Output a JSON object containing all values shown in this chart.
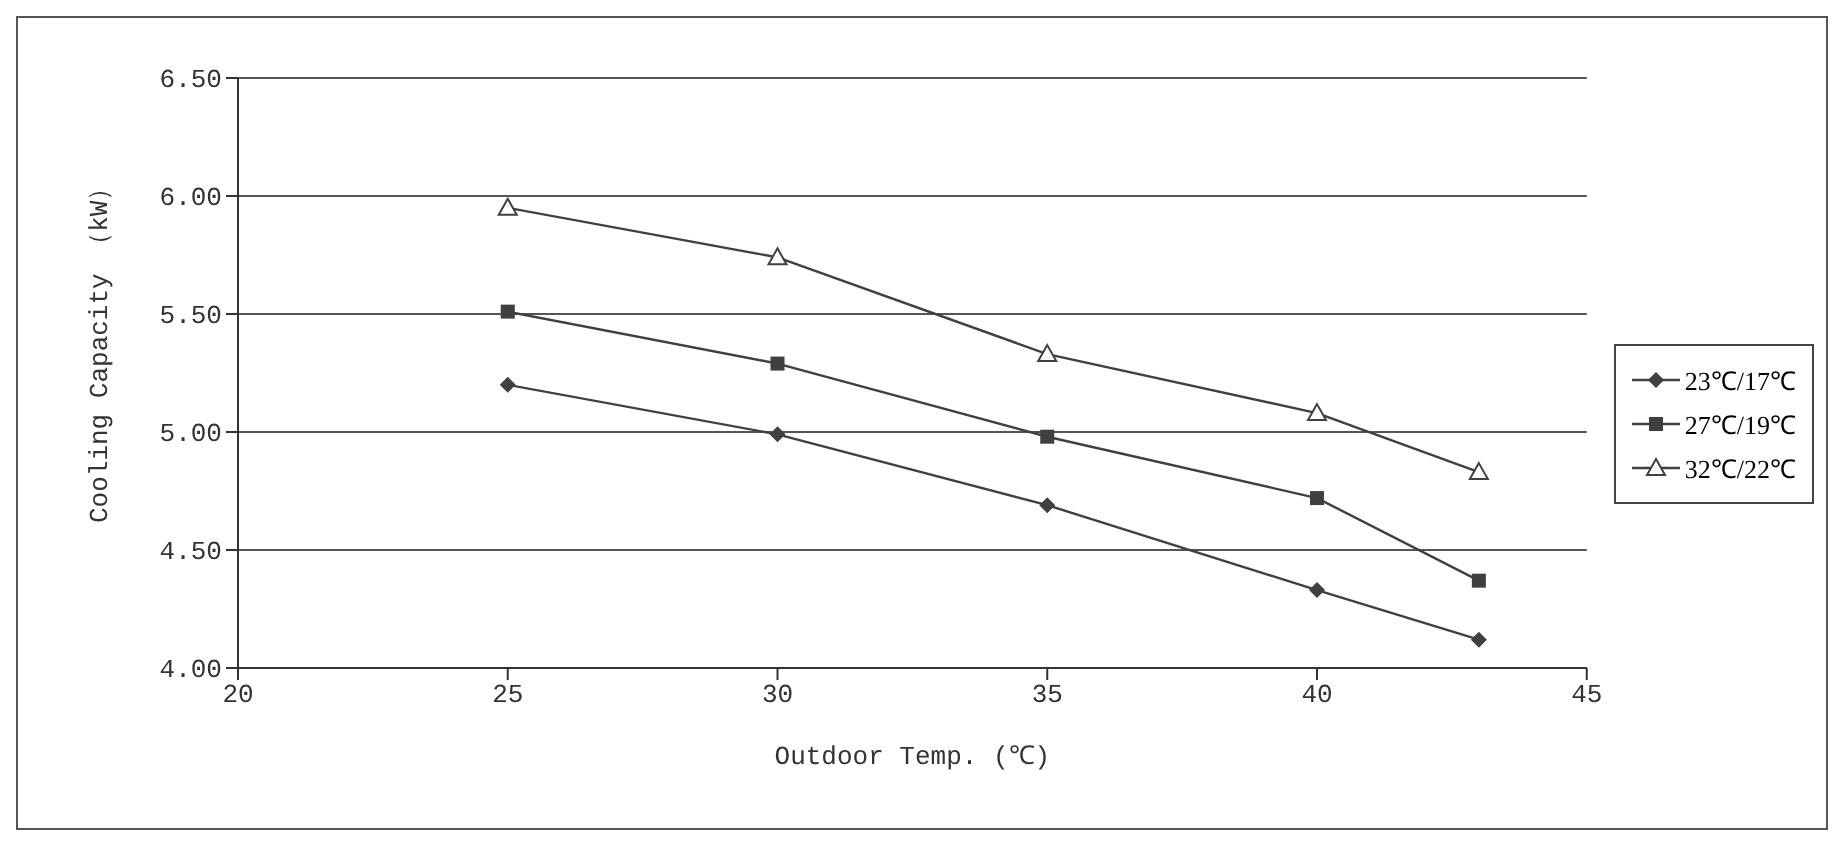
{
  "chart_data": {
    "type": "line",
    "xlabel": "Outdoor Temp. (℃)",
    "ylabel": "Cooling Capacity （kW）",
    "x": [
      25,
      30,
      35,
      40,
      43
    ],
    "series": [
      {
        "name": "23℃/17℃",
        "color": "#404040",
        "marker": "diamond",
        "values": [
          5.2,
          4.99,
          4.69,
          4.33,
          4.12
        ]
      },
      {
        "name": "27℃/19℃",
        "color": "#404040",
        "marker": "square",
        "values": [
          5.51,
          5.29,
          4.98,
          4.72,
          4.37
        ]
      },
      {
        "name": "32℃/22℃",
        "color": "#404040",
        "marker": "triangle",
        "values": [
          5.95,
          5.74,
          5.33,
          5.08,
          4.83
        ]
      }
    ],
    "xlim": [
      20,
      45
    ],
    "xticks": [
      20,
      25,
      30,
      35,
      40,
      45
    ],
    "ylim": [
      4,
      6.5
    ],
    "yticks": [
      {
        "value": 4,
        "label": "4.00"
      },
      {
        "value": 4.5,
        "label": "4.50"
      },
      {
        "value": 5,
        "label": "5.00"
      },
      {
        "value": 5.5,
        "label": "5.50"
      },
      {
        "value": 6,
        "label": "6.00"
      },
      {
        "value": 6.5,
        "label": "6.50"
      }
    ],
    "grid": "y",
    "legend": "right"
  }
}
